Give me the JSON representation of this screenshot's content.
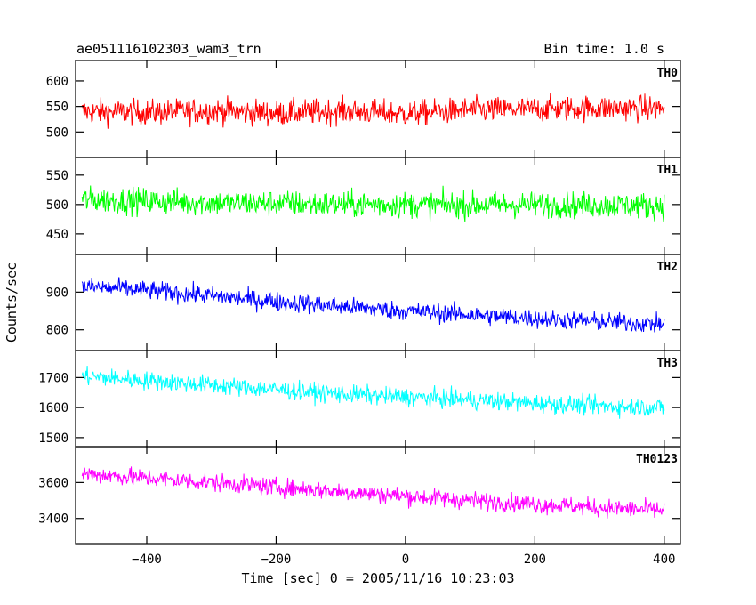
{
  "chart_data": {
    "type": "line",
    "title": "ae051116102303_wam3_trn",
    "bin_time_label": "Bin time: 1.0 s",
    "xlabel": "Time [sec] 0 = 2005/11/16 10:23:03",
    "ylabel": "Counts/sec",
    "xlim": [
      -510,
      425
    ],
    "x_ticks": [
      -400,
      -200,
      0,
      200,
      400
    ],
    "x_range": [
      -500,
      400
    ],
    "grid": false,
    "panels": [
      {
        "name": "TH0",
        "color": "#ff0000",
        "ylim": [
          450,
          640
        ],
        "y_ticks": [
          500,
          550,
          600
        ],
        "series_x": [
          -500,
          -400,
          -300,
          -200,
          -100,
          0,
          100,
          200,
          300,
          400
        ],
        "series_y": [
          540,
          538,
          542,
          537,
          541,
          536,
          543,
          545,
          547,
          546
        ],
        "noise_amplitude": 45
      },
      {
        "name": "TH1",
        "color": "#00ff00",
        "ylim": [
          415,
          580
        ],
        "y_ticks": [
          450,
          500,
          550
        ],
        "series_x": [
          -500,
          -400,
          -300,
          -200,
          -100,
          0,
          100,
          200,
          300,
          400
        ],
        "series_y": [
          508,
          506,
          503,
          502,
          500,
          500,
          499,
          500,
          499,
          498
        ],
        "noise_amplitude": 40
      },
      {
        "name": "TH2",
        "color": "#0000ff",
        "ylim": [
          745,
          1000
        ],
        "y_ticks": [
          800,
          900
        ],
        "series_x": [
          -500,
          -400,
          -300,
          -200,
          -100,
          0,
          100,
          200,
          300,
          400
        ],
        "series_y": [
          915,
          905,
          890,
          875,
          862,
          850,
          840,
          830,
          822,
          815
        ],
        "noise_amplitude": 45
      },
      {
        "name": "TH3",
        "color": "#00ffff",
        "ylim": [
          1470,
          1790
        ],
        "y_ticks": [
          1500,
          1600,
          1700
        ],
        "series_x": [
          -500,
          -400,
          -300,
          -200,
          -100,
          0,
          100,
          200,
          300,
          400
        ],
        "series_y": [
          1705,
          1690,
          1675,
          1660,
          1645,
          1635,
          1625,
          1615,
          1605,
          1600
        ],
        "noise_amplitude": 55
      },
      {
        "name": "TH0123",
        "color": "#ff00ff",
        "ylim": [
          3260,
          3800
        ],
        "y_ticks": [
          3400,
          3600
        ],
        "series_x": [
          -500,
          -400,
          -300,
          -200,
          -100,
          0,
          100,
          200,
          300,
          400
        ],
        "series_y": [
          3650,
          3625,
          3600,
          3575,
          3550,
          3525,
          3500,
          3480,
          3460,
          3445
        ],
        "noise_amplitude": 90
      }
    ]
  }
}
